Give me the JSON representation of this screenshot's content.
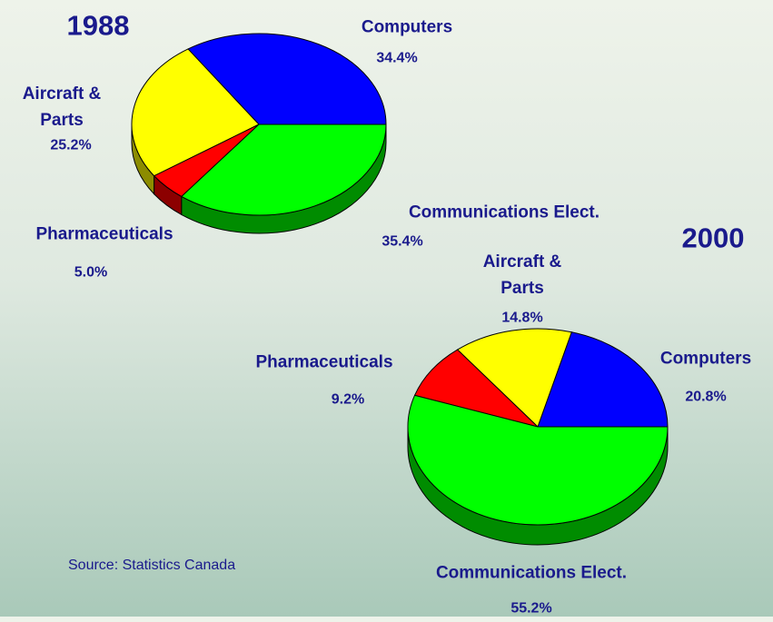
{
  "chart_data": [
    {
      "type": "pie",
      "title": "1988",
      "categories": [
        "Computers",
        "Aircraft & Parts",
        "Pharmaceuticals",
        "Communications Elect."
      ],
      "values": [
        34.4,
        25.2,
        5.0,
        35.4
      ],
      "value_labels": [
        "34.4%",
        "25.2%",
        "5.0%",
        "35.4%"
      ],
      "colors": [
        "#0000ff",
        "#ffff00",
        "#ff0000",
        "#00ff00"
      ]
    },
    {
      "type": "pie",
      "title": "2000",
      "categories": [
        "Computers",
        "Aircraft & Parts",
        "Pharmaceuticals",
        "Communications Elect."
      ],
      "values": [
        20.8,
        14.8,
        9.2,
        55.2
      ],
      "value_labels": [
        "20.8%",
        "14.8%",
        "9.2%",
        "55.2%"
      ],
      "colors": [
        "#0000ff",
        "#ffff00",
        "#ff0000",
        "#00ff00"
      ]
    }
  ],
  "source": "Source: Statistics Canada"
}
